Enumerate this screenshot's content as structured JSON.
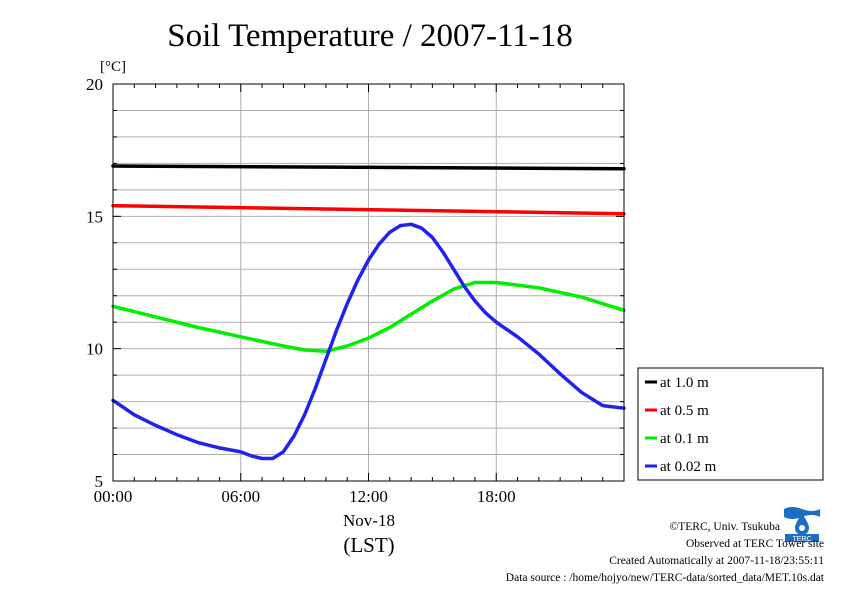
{
  "chart_data": {
    "type": "line",
    "title": "Soil Temperature / 2007-11-18",
    "ylabel": "[°C]",
    "xlabel": "(LST)",
    "date_label": "Nov-18",
    "xlim": [
      0,
      24
    ],
    "ylim": [
      5,
      20
    ],
    "x_ticks": [
      0,
      6,
      12,
      18
    ],
    "x_tick_labels": [
      "00:00",
      "06:00",
      "12:00",
      "18:00"
    ],
    "y_ticks": [
      5,
      10,
      15,
      20
    ],
    "y_tick_labels": [
      "5",
      "10",
      "15",
      "20"
    ],
    "grid": true,
    "legend_position": "right",
    "series": [
      {
        "name": "at 1.0 m",
        "color": "#000000",
        "x": [
          0,
          24
        ],
        "values": [
          16.9,
          16.8
        ]
      },
      {
        "name": "at 0.5 m",
        "color": "#ff0000",
        "x": [
          0,
          24
        ],
        "values": [
          15.4,
          15.1
        ]
      },
      {
        "name": "at 0.1 m",
        "color": "#00ee00",
        "x": [
          0,
          2,
          4,
          6,
          8,
          9,
          10,
          11,
          12,
          13,
          14,
          15,
          16,
          17,
          18,
          19,
          20,
          22,
          24
        ],
        "values": [
          11.6,
          11.2,
          10.8,
          10.45,
          10.1,
          9.95,
          9.9,
          10.1,
          10.4,
          10.8,
          11.3,
          11.8,
          12.25,
          12.5,
          12.5,
          12.4,
          12.3,
          11.95,
          11.45
        ]
      },
      {
        "name": "at 0.02 m",
        "color": "#2222ee",
        "x": [
          0,
          1,
          2,
          3,
          4,
          5,
          6,
          6.5,
          7,
          7.5,
          8,
          8.5,
          9,
          9.5,
          10,
          10.5,
          11,
          11.5,
          12,
          12.5,
          13,
          13.5,
          14,
          14.5,
          15,
          15.5,
          16,
          16.5,
          17,
          17.5,
          18,
          19,
          20,
          21,
          22,
          23,
          24
        ],
        "values": [
          8.05,
          7.5,
          7.1,
          6.75,
          6.45,
          6.25,
          6.1,
          5.95,
          5.85,
          5.85,
          6.1,
          6.7,
          7.5,
          8.5,
          9.6,
          10.7,
          11.7,
          12.6,
          13.35,
          13.95,
          14.4,
          14.65,
          14.7,
          14.55,
          14.2,
          13.65,
          13.0,
          12.35,
          11.8,
          11.35,
          11.0,
          10.45,
          9.8,
          9.05,
          8.35,
          7.85,
          7.75
        ]
      }
    ]
  },
  "credits": {
    "copyright": "©TERC, Univ. Tsukuba",
    "observed": "Observed at TERC Tower site",
    "created": "Created Automatically at 2007-11-18/23:55:11",
    "source": "Data source : /home/hojyo/new/TERC-data/sorted_data/MET.10s.dat",
    "logo_text": "TERC"
  }
}
